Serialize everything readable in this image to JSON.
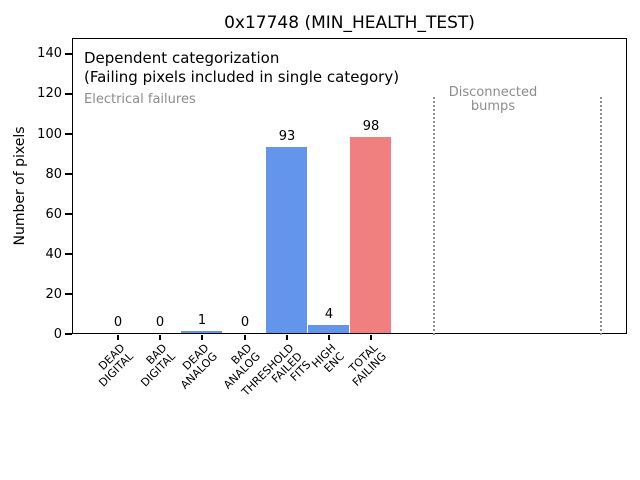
{
  "figure": {
    "title": "0x17748 (MIN_HEALTH_TEST)",
    "annotations": {
      "dependent": "Dependent categorization",
      "failing_note": "(Failing pixels included in single category)",
      "electrical_region": "Electrical failures",
      "disconnected_region": "Disconnected\nbumps"
    }
  },
  "chart_data": {
    "type": "bar",
    "title": "0x17748 (MIN_HEALTH_TEST)",
    "xlabel": "",
    "ylabel": "Number of pixels",
    "categories": [
      "DEAD\nDIGITAL",
      "BAD\nDIGITAL",
      "DEAD\nANALOG",
      "BAD\nANALOG",
      "THRESHOLD\nFAILED\nFITS",
      "HIGH\nENC",
      "TOTAL\nFAILING"
    ],
    "values": [
      0,
      0,
      1,
      0,
      93,
      4,
      98
    ],
    "bar_colors": [
      "#6495ED",
      "#6495ED",
      "#6495ED",
      "#6495ED",
      "#6495ED",
      "#6495ED",
      "#F08080"
    ],
    "value_labels_shown": true,
    "yticks": [
      0,
      20,
      40,
      60,
      80,
      100,
      120,
      140
    ],
    "ylim": [
      0,
      147
    ],
    "grid": false,
    "legend": "none",
    "region_dividers": {
      "style": "dotted",
      "color": "#909090",
      "label": "Disconnected\nbumps",
      "note": "two vertical dotted lines delimit an empty 'Disconnected bumps' region right of the bars"
    },
    "colors": {
      "bar_blue": "#6495ED",
      "bar_red": "#F08080",
      "muted_text": "#8c8c8c"
    }
  }
}
